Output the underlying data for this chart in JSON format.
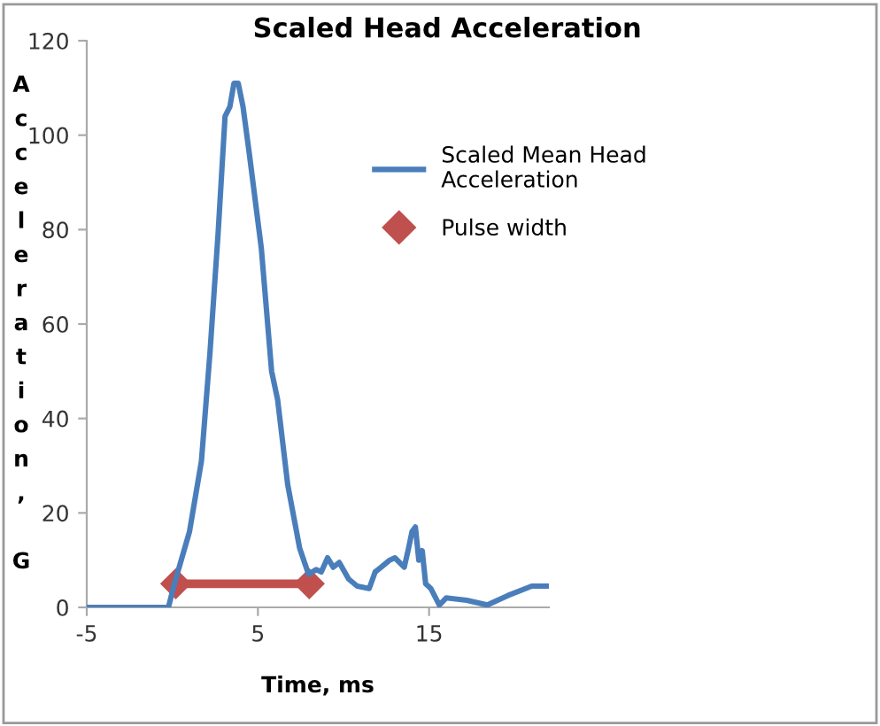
{
  "chart_data": {
    "type": "line",
    "title": "Scaled Head Acceleration",
    "xlabel": "Time, ms",
    "ylabel": "Acceleration, G",
    "xlim": [
      -5,
      22
    ],
    "ylim": [
      0,
      120
    ],
    "xticks": [
      -5,
      5,
      15
    ],
    "yticks": [
      0,
      20,
      40,
      60,
      80,
      100,
      120
    ],
    "grid": false,
    "legend": "top right",
    "series": [
      {
        "name": "Scaled Mean Head Acceleration",
        "color": "#4a7ebb",
        "marker": "none",
        "x": [
          -5,
          -0.23,
          0.12,
          1.0,
          1.7,
          2.2,
          2.67,
          3.08,
          3.36,
          3.6,
          3.85,
          4.13,
          4.5,
          5.2,
          5.8,
          6.15,
          6.74,
          7.44,
          7.96,
          8.4,
          8.7,
          9.07,
          9.4,
          9.75,
          10.3,
          10.8,
          11.5,
          11.85,
          12.2,
          12.7,
          13.0,
          13.55,
          13.8,
          14.0,
          14.2,
          14.4,
          14.6,
          14.8,
          15.1,
          15.6,
          16.0,
          17.2,
          18.4,
          19.6,
          21.0,
          21.9
        ],
        "values": [
          0,
          0,
          5,
          16,
          31,
          54,
          79,
          104,
          106,
          111,
          111,
          106,
          96,
          76,
          50,
          44,
          26,
          12.5,
          7,
          8,
          7.5,
          10.5,
          8.5,
          9.5,
          6,
          4.5,
          4,
          7.5,
          8.5,
          10,
          10.5,
          8.5,
          12.5,
          16,
          17,
          10,
          12,
          5,
          4,
          0.5,
          2,
          1.5,
          0.5,
          2.5,
          4.5,
          4.5
        ]
      },
      {
        "name": "Pulse width",
        "color": "#c0504d",
        "marker": "diamond",
        "x": [
          0.2,
          8.0
        ],
        "values": [
          5,
          5
        ]
      }
    ]
  }
}
